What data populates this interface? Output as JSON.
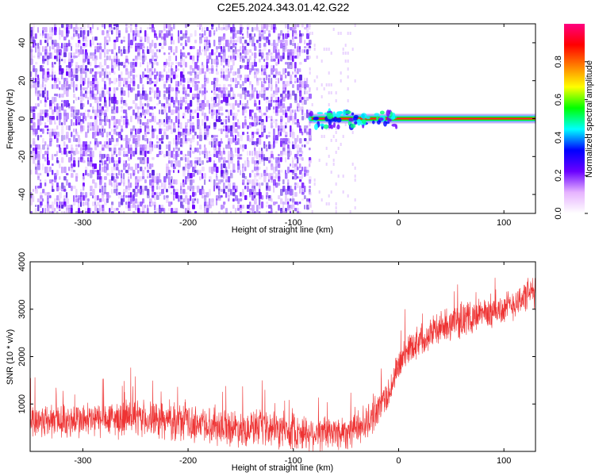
{
  "title": "C2E5.2024.343.01.42.G22",
  "chart_data": [
    {
      "type": "heatmap",
      "xlabel": "Height of straight line (km)",
      "ylabel": "Frequency (Hz)",
      "xlim": [
        -350,
        130
      ],
      "ylim": [
        -50,
        50
      ],
      "xticks": [
        -300,
        -200,
        -100,
        0,
        100
      ],
      "yticks": [
        -40,
        -20,
        0,
        20,
        40
      ],
      "noise_region_x": [
        -350,
        -85
      ],
      "signal_start_x": -85,
      "signal_frequency": 0,
      "colorbar": {
        "label": "Normalized spectral amplitude",
        "range": [
          0.0,
          1.0
        ],
        "ticks": [
          "0.0",
          "0.2",
          "0.4",
          "0.6",
          "0.8"
        ],
        "tick_values": [
          0.0,
          0.2,
          0.4,
          0.6,
          0.8
        ],
        "colormap": [
          "#ffffff",
          "#e6b3ff",
          "#6a00ff",
          "#0000ff",
          "#00ffff",
          "#00ff00",
          "#ffff00",
          "#ff7f00",
          "#ff0000",
          "#ff0080"
        ]
      }
    },
    {
      "type": "line",
      "xlabel": "Height of straight line (km)",
      "ylabel": "SNR (10 * v/v)",
      "xlim": [
        -350,
        130
      ],
      "ylim": [
        0,
        4000
      ],
      "xticks": [
        -300,
        -200,
        -100,
        0,
        100
      ],
      "yticks": [
        1000,
        2000,
        3000,
        4000
      ],
      "color": "#ee3333",
      "trend": {
        "x": [
          -350,
          -300,
          -250,
          -200,
          -150,
          -100,
          -70,
          -50,
          -30,
          -10,
          0,
          10,
          30,
          50,
          80,
          100,
          115,
          130
        ],
        "y": [
          650,
          650,
          700,
          600,
          500,
          420,
          380,
          420,
          600,
          1200,
          1800,
          2200,
          2500,
          2700,
          2900,
          3000,
          3200,
          3400
        ]
      },
      "noise_amplitude": 450
    }
  ]
}
